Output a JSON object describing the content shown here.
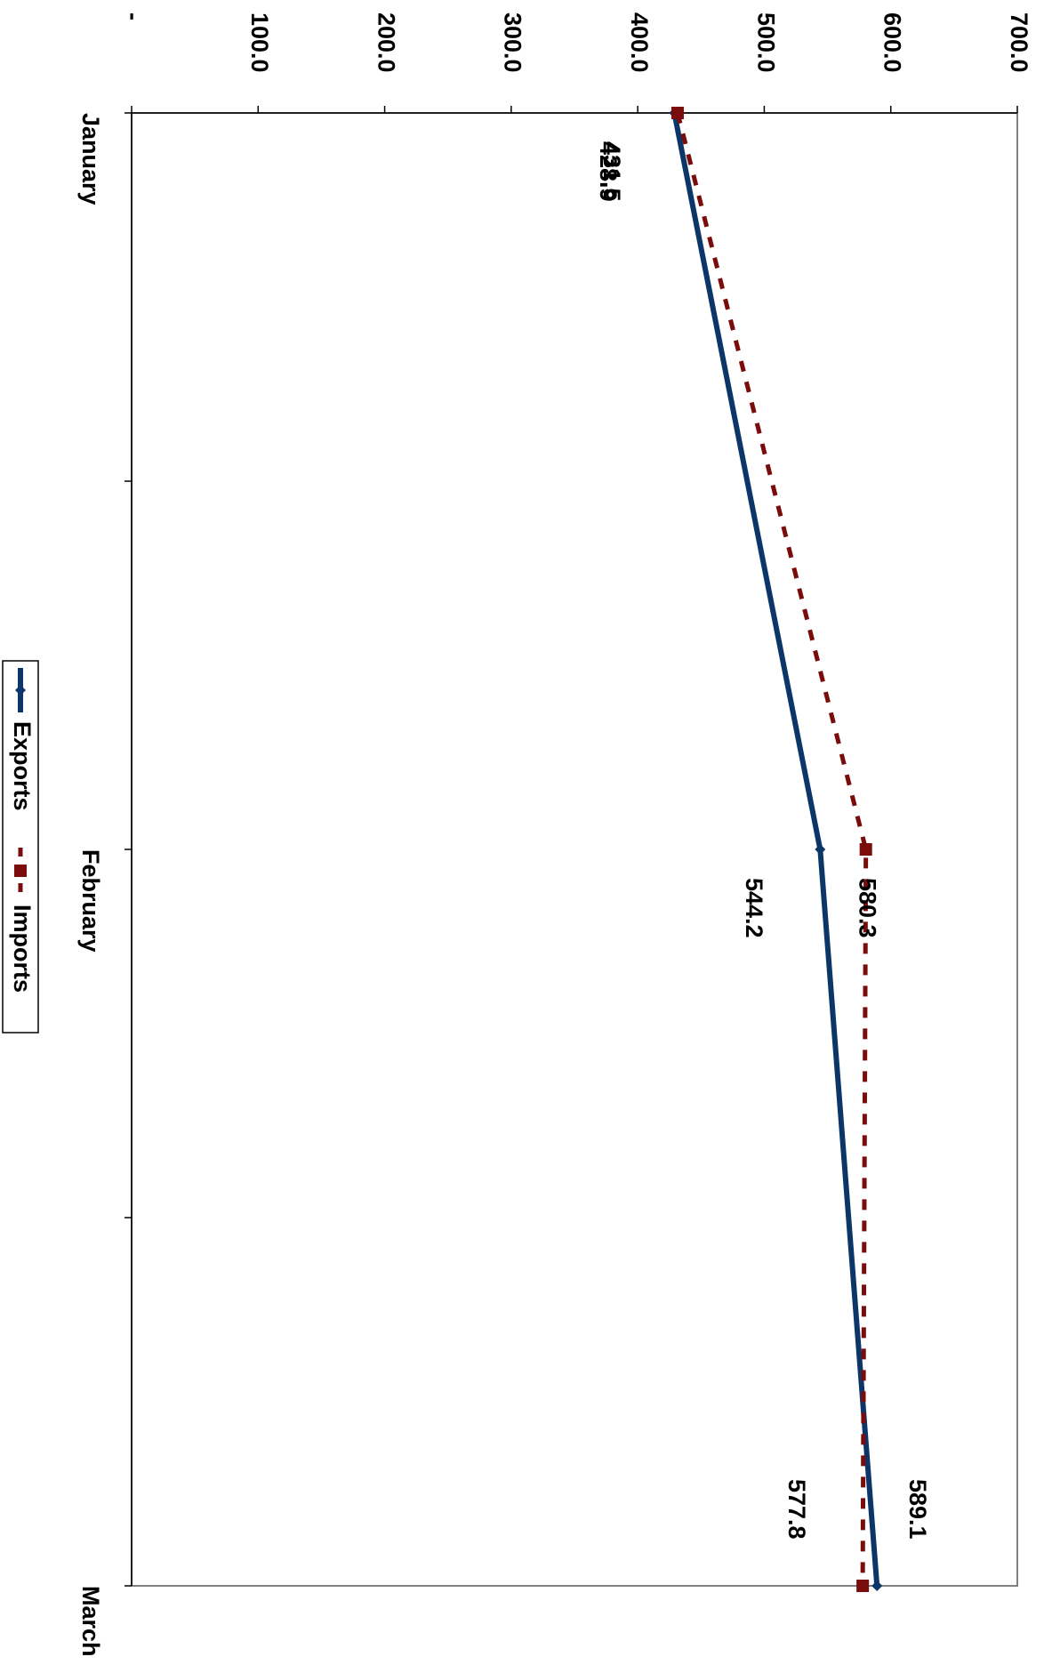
{
  "chart_data": {
    "type": "line",
    "orientation": "rotated-90-clockwise",
    "title": "",
    "xlabel": "",
    "ylabel": "",
    "categories": [
      "January",
      "February",
      "March"
    ],
    "y_ticks": [
      "-",
      "100.0",
      "200.0",
      "300.0",
      "400.0",
      "500.0",
      "600.0",
      "700.0"
    ],
    "ylim": [
      0,
      700
    ],
    "grid": false,
    "legend_position": "bottom",
    "series": [
      {
        "name": "Exports",
        "values": [
          428.9,
          544.2,
          589.1
        ],
        "labels": [
          "428.9",
          "544.2",
          "589.1"
        ],
        "color": "#0d3668",
        "line_style": "solid",
        "marker": "diamond"
      },
      {
        "name": "Imports",
        "values": [
          431.5,
          580.3,
          577.8
        ],
        "labels": [
          "431.5",
          "580.3",
          "577.8"
        ],
        "color": "#7a0c0c",
        "line_style": "dashed",
        "marker": "square"
      }
    ]
  }
}
